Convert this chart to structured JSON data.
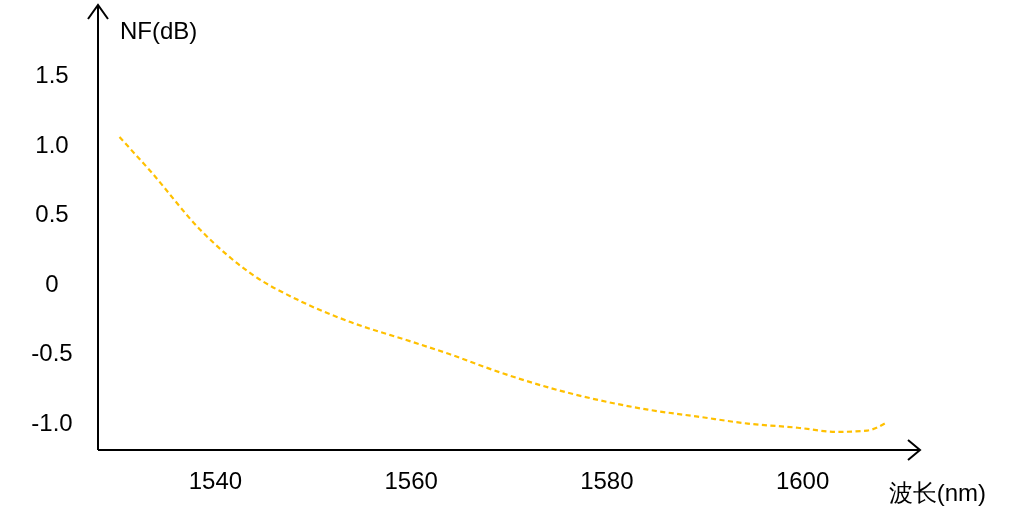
{
  "chart_data": {
    "type": "line",
    "xlabel": "波长(nm)",
    "ylabel": "NF(dB)",
    "xlim": [
      1528,
      1612
    ],
    "xticks": [
      1540,
      1560,
      1580,
      1600
    ],
    "ylim": [
      -1.2,
      2.0
    ],
    "yticks": [
      {
        "value": 1.5,
        "label": "1.5"
      },
      {
        "value": 1.0,
        "label": "1.0"
      },
      {
        "value": 0.5,
        "label": "0.5"
      },
      0,
      {
        "value": -0.5,
        "label": "-0.5"
      },
      {
        "value": -1.0,
        "label": "-1.0"
      }
    ],
    "grid": false,
    "line_style": "dashed",
    "marker": "none",
    "series": [
      {
        "color": "#ffc000",
        "x": [
          1530.2,
          1533.3,
          1538.5,
          1543.6,
          1548.7,
          1553.8,
          1560,
          1563.9,
          1569,
          1574,
          1579.1,
          1584.2,
          1589.3,
          1594.4,
          1599.5,
          1603.5,
          1606.6,
          1608.4
        ],
        "values": [
          1.05,
          0.81,
          0.38,
          0.07,
          -0.13,
          -0.28,
          -0.42,
          -0.51,
          -0.64,
          -0.75,
          -0.84,
          -0.91,
          -0.96,
          -1.01,
          -1.04,
          -1.07,
          -1.06,
          -1.01
        ]
      }
    ]
  }
}
